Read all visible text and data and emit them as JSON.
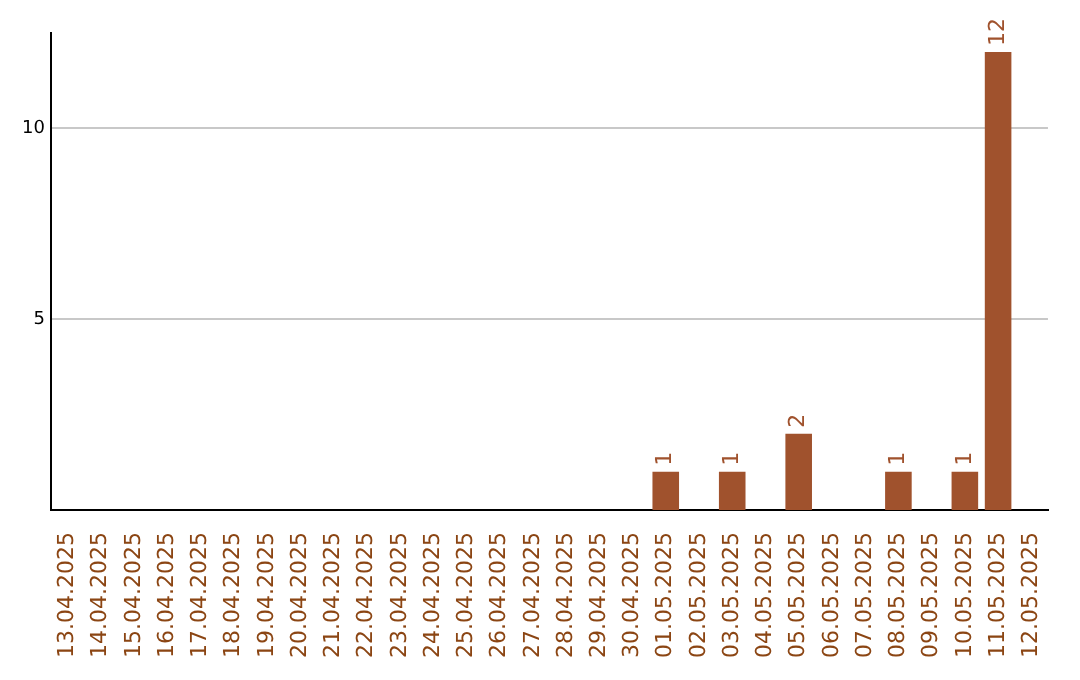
{
  "chart_data": {
    "type": "bar",
    "categories": [
      "13.04.2025",
      "14.04.2025",
      "15.04.2025",
      "16.04.2025",
      "17.04.2025",
      "18.04.2025",
      "19.04.2025",
      "20.04.2025",
      "21.04.2025",
      "22.04.2025",
      "23.04.2025",
      "24.04.2025",
      "25.04.2025",
      "26.04.2025",
      "27.04.2025",
      "28.04.2025",
      "29.04.2025",
      "30.04.2025",
      "01.05.2025",
      "02.05.2025",
      "03.05.2025",
      "04.05.2025",
      "05.05.2025",
      "06.05.2025",
      "07.05.2025",
      "08.05.2025",
      "09.05.2025",
      "10.05.2025",
      "11.05.2025",
      "12.05.2025"
    ],
    "values": [
      0,
      0,
      0,
      0,
      0,
      0,
      0,
      0,
      0,
      0,
      0,
      0,
      0,
      0,
      0,
      0,
      0,
      0,
      1,
      0,
      1,
      0,
      2,
      0,
      0,
      1,
      0,
      1,
      12,
      0
    ],
    "value_labels": [
      null,
      null,
      null,
      null,
      null,
      null,
      null,
      null,
      null,
      null,
      null,
      null,
      null,
      null,
      null,
      null,
      null,
      null,
      "1",
      null,
      "1",
      null,
      "2",
      null,
      null,
      "1",
      null,
      "1",
      "12",
      null
    ],
    "color": "#a0522d",
    "ylim": [
      0,
      12.5
    ],
    "yticks": [
      5,
      10
    ],
    "grid": "y",
    "legend": false
  }
}
